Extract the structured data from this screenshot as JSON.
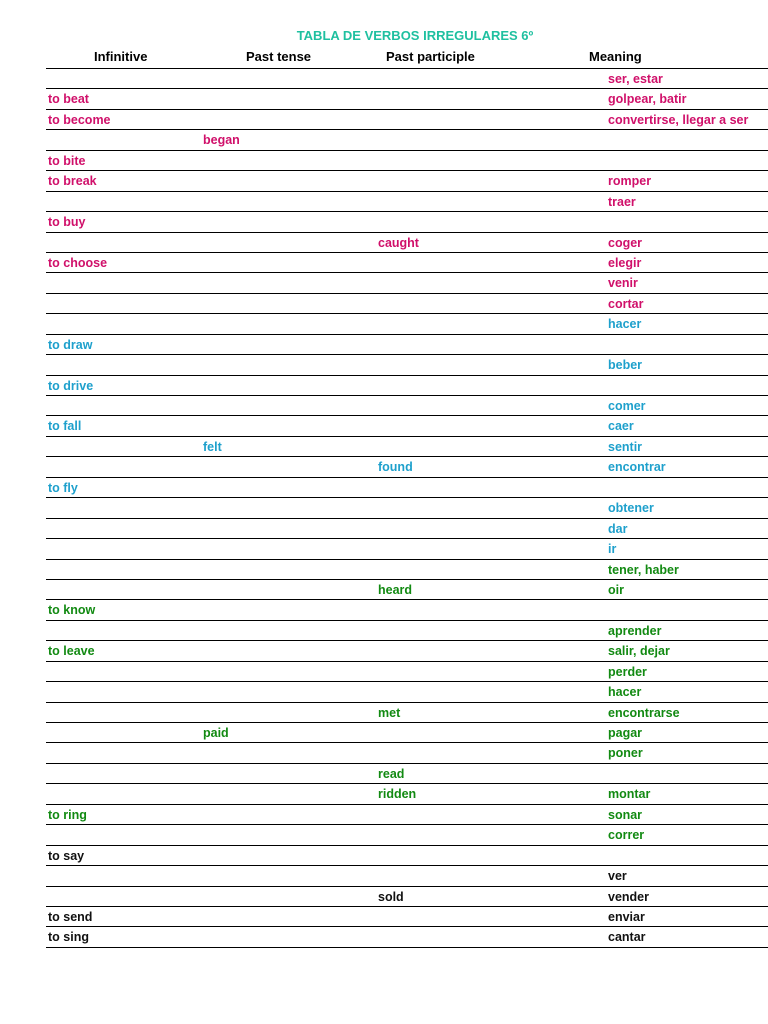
{
  "title": "TABLA DE VERBOS IRREGULARES 6º",
  "colors": {
    "title": "#1fc0a0",
    "magenta": "#d0106a",
    "blue": "#1ea0cc",
    "green": "#128a12",
    "black": "#111111"
  },
  "headers": {
    "infinitive": "Infinitive",
    "past_tense": "Past tense",
    "past_participle": "Past participle",
    "meaning": "Meaning"
  },
  "rows": [
    {
      "inf": "",
      "past": "",
      "pp": "",
      "mean": "ser, estar",
      "color": "magenta"
    },
    {
      "inf": "to beat",
      "past": "",
      "pp": "",
      "mean": "golpear, batir",
      "color": "magenta"
    },
    {
      "inf": "to become",
      "past": "",
      "pp": "",
      "mean": "convertirse, llegar a ser",
      "color": "magenta"
    },
    {
      "inf": "",
      "past": "began",
      "pp": "",
      "mean": "",
      "color": "magenta"
    },
    {
      "inf": "to bite",
      "past": "",
      "pp": "",
      "mean": "",
      "color": "magenta"
    },
    {
      "inf": "to break",
      "past": "",
      "pp": "",
      "mean": "romper",
      "color": "magenta"
    },
    {
      "inf": "",
      "past": "",
      "pp": "",
      "mean": "traer",
      "color": "magenta"
    },
    {
      "inf": "to buy",
      "past": "",
      "pp": "",
      "mean": "",
      "color": "magenta"
    },
    {
      "inf": "",
      "past": "",
      "pp": "caught",
      "mean": "coger",
      "color": "magenta"
    },
    {
      "inf": "to choose",
      "past": "",
      "pp": "",
      "mean": "elegir",
      "color": "magenta"
    },
    {
      "inf": "",
      "past": "",
      "pp": "",
      "mean": "venir",
      "color": "magenta"
    },
    {
      "inf": "",
      "past": "",
      "pp": "",
      "mean": "cortar",
      "color": "magenta"
    },
    {
      "inf": "",
      "past": "",
      "pp": "",
      "mean": "hacer",
      "color": "blue"
    },
    {
      "inf": "to draw",
      "past": "",
      "pp": "",
      "mean": "",
      "color": "blue"
    },
    {
      "inf": "",
      "past": "",
      "pp": "",
      "mean": "beber",
      "color": "blue"
    },
    {
      "inf": "to drive",
      "past": "",
      "pp": "",
      "mean": "",
      "color": "blue"
    },
    {
      "inf": "",
      "past": "",
      "pp": "",
      "mean": "comer",
      "color": "blue"
    },
    {
      "inf": "to fall",
      "past": "",
      "pp": "",
      "mean": "caer",
      "color": "blue"
    },
    {
      "inf": "",
      "past": "felt",
      "pp": "",
      "mean": "sentir",
      "color": "blue"
    },
    {
      "inf": "",
      "past": "",
      "pp": "found",
      "mean": "encontrar",
      "color": "blue"
    },
    {
      "inf": "to fly",
      "past": "",
      "pp": "",
      "mean": "",
      "color": "blue"
    },
    {
      "inf": "",
      "past": "",
      "pp": "",
      "mean": "obtener",
      "color": "blue"
    },
    {
      "inf": "",
      "past": "",
      "pp": "",
      "mean": "dar",
      "color": "blue"
    },
    {
      "inf": "",
      "past": "",
      "pp": "",
      "mean": "ir",
      "color": "blue"
    },
    {
      "inf": "",
      "past": "",
      "pp": "",
      "mean": "tener, haber",
      "color": "green"
    },
    {
      "inf": "",
      "past": "",
      "pp": "heard",
      "mean": "oir",
      "color": "green"
    },
    {
      "inf": "to know",
      "past": "",
      "pp": "",
      "mean": "",
      "color": "green"
    },
    {
      "inf": "",
      "past": "",
      "pp": "",
      "mean": "aprender",
      "color": "green"
    },
    {
      "inf": "to leave",
      "past": "",
      "pp": "",
      "mean": "salir, dejar",
      "color": "green"
    },
    {
      "inf": "",
      "past": "",
      "pp": "",
      "mean": "perder",
      "color": "green"
    },
    {
      "inf": "",
      "past": "",
      "pp": "",
      "mean": "hacer",
      "color": "green"
    },
    {
      "inf": "",
      "past": "",
      "pp": "met",
      "mean": "encontrarse",
      "color": "green"
    },
    {
      "inf": "",
      "past": "paid",
      "pp": "",
      "mean": "pagar",
      "color": "green"
    },
    {
      "inf": "",
      "past": "",
      "pp": "",
      "mean": "poner",
      "color": "green"
    },
    {
      "inf": "",
      "past": "",
      "pp": "read",
      "mean": "",
      "color": "green"
    },
    {
      "inf": "",
      "past": "",
      "pp": "ridden",
      "mean": "montar",
      "color": "green"
    },
    {
      "inf": "to ring",
      "past": "",
      "pp": "",
      "mean": "sonar",
      "color": "green"
    },
    {
      "inf": "",
      "past": "",
      "pp": "",
      "mean": "correr",
      "color": "green"
    },
    {
      "inf": "to say",
      "past": "",
      "pp": "",
      "mean": "",
      "color": "black"
    },
    {
      "inf": "",
      "past": "",
      "pp": "",
      "mean": "ver",
      "color": "black"
    },
    {
      "inf": "",
      "past": "",
      "pp": "sold",
      "mean": "vender",
      "color": "black"
    },
    {
      "inf": "to send",
      "past": "",
      "pp": "",
      "mean": "enviar",
      "color": "black"
    },
    {
      "inf": "to sing",
      "past": "",
      "pp": "",
      "mean": "cantar",
      "color": "black"
    }
  ]
}
